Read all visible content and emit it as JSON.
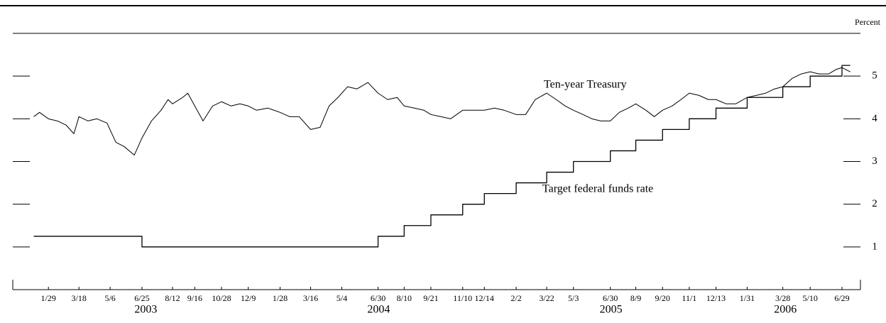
{
  "chart_data": {
    "type": "line",
    "y_axis_label": "Percent",
    "annotations": [
      "Ten-year Treasury",
      "Target federal funds rate"
    ],
    "xlim": [
      "2002-12-04",
      "2006-07-28"
    ],
    "ylim": [
      0,
      6
    ],
    "yticks": [
      1,
      2,
      3,
      4,
      5
    ],
    "xticks": [
      {
        "value": "2003-01-29",
        "label": "1/29"
      },
      {
        "value": "2003-03-18",
        "label": "3/18"
      },
      {
        "value": "2003-05-06",
        "label": "5/6"
      },
      {
        "value": "2003-06-25",
        "label": "6/25"
      },
      {
        "value": "2003-08-12",
        "label": "8/12"
      },
      {
        "value": "2003-09-16",
        "label": "9/16"
      },
      {
        "value": "2003-10-28",
        "label": "10/28"
      },
      {
        "value": "2003-12-09",
        "label": "12/9"
      },
      {
        "value": "2004-01-28",
        "label": "1/28"
      },
      {
        "value": "2004-03-16",
        "label": "3/16"
      },
      {
        "value": "2004-05-04",
        "label": "5/4"
      },
      {
        "value": "2004-06-30",
        "label": "6/30"
      },
      {
        "value": "2004-08-10",
        "label": "8/10"
      },
      {
        "value": "2004-09-21",
        "label": "9/21"
      },
      {
        "value": "2004-11-10",
        "label": "11/10"
      },
      {
        "value": "2004-12-14",
        "label": "12/14"
      },
      {
        "value": "2005-02-02",
        "label": "2/2"
      },
      {
        "value": "2005-03-22",
        "label": "3/22"
      },
      {
        "value": "2005-05-03",
        "label": "5/3"
      },
      {
        "value": "2005-06-30",
        "label": "6/30"
      },
      {
        "value": "2005-08-09",
        "label": "8/9"
      },
      {
        "value": "2005-09-20",
        "label": "9/20"
      },
      {
        "value": "2005-11-01",
        "label": "11/1"
      },
      {
        "value": "2005-12-13",
        "label": "12/13"
      },
      {
        "value": "2006-01-31",
        "label": "1/31"
      },
      {
        "value": "2006-03-28",
        "label": "3/28"
      },
      {
        "value": "2006-05-10",
        "label": "5/10"
      },
      {
        "value": "2006-06-29",
        "label": "6/29"
      }
    ],
    "year_labels": [
      {
        "value": "2003-07-01",
        "label": "2003"
      },
      {
        "value": "2004-07-01",
        "label": "2004"
      },
      {
        "value": "2005-07-01",
        "label": "2005"
      },
      {
        "value": "2006-04-01",
        "label": "2006"
      }
    ],
    "series": [
      {
        "name": "Ten-year Treasury",
        "color": "#000000",
        "step": false,
        "x": [
          "2003-01-06",
          "2003-01-15",
          "2003-01-29",
          "2003-02-12",
          "2003-02-26",
          "2003-03-10",
          "2003-03-18",
          "2003-04-01",
          "2003-04-15",
          "2003-05-01",
          "2003-05-15",
          "2003-05-28",
          "2003-06-13",
          "2003-06-25",
          "2003-07-10",
          "2003-07-25",
          "2003-08-05",
          "2003-08-12",
          "2003-08-28",
          "2003-09-05",
          "2003-09-16",
          "2003-09-29",
          "2003-10-14",
          "2003-10-28",
          "2003-11-12",
          "2003-11-26",
          "2003-12-09",
          "2003-12-22",
          "2004-01-09",
          "2004-01-28",
          "2004-02-12",
          "2004-02-27",
          "2004-03-16",
          "2004-03-31",
          "2004-04-14",
          "2004-04-28",
          "2004-05-13",
          "2004-05-28",
          "2004-06-14",
          "2004-06-30",
          "2004-07-15",
          "2004-07-30",
          "2004-08-10",
          "2004-08-26",
          "2004-09-10",
          "2004-09-21",
          "2004-10-07",
          "2004-10-22",
          "2004-11-10",
          "2004-11-26",
          "2004-12-14",
          "2004-12-30",
          "2005-01-14",
          "2005-02-02",
          "2005-02-17",
          "2005-03-04",
          "2005-03-22",
          "2005-04-06",
          "2005-04-20",
          "2005-05-03",
          "2005-05-18",
          "2005-06-01",
          "2005-06-15",
          "2005-06-30",
          "2005-07-14",
          "2005-07-28",
          "2005-08-09",
          "2005-08-25",
          "2005-09-07",
          "2005-09-20",
          "2005-10-05",
          "2005-10-19",
          "2005-11-01",
          "2005-11-16",
          "2005-12-01",
          "2005-12-13",
          "2005-12-29",
          "2006-01-13",
          "2006-01-31",
          "2006-02-15",
          "2006-03-01",
          "2006-03-15",
          "2006-03-28",
          "2006-04-12",
          "2006-04-26",
          "2006-05-10",
          "2006-05-24",
          "2006-06-08",
          "2006-06-19",
          "2006-06-29",
          "2006-07-12"
        ],
        "values": [
          4.05,
          4.15,
          4.0,
          3.95,
          3.85,
          3.65,
          4.05,
          3.95,
          4.0,
          3.9,
          3.45,
          3.35,
          3.15,
          3.55,
          3.95,
          4.2,
          4.45,
          4.35,
          4.5,
          4.6,
          4.3,
          3.95,
          4.3,
          4.4,
          4.3,
          4.35,
          4.3,
          4.2,
          4.25,
          4.15,
          4.05,
          4.05,
          3.75,
          3.8,
          4.3,
          4.5,
          4.75,
          4.7,
          4.85,
          4.6,
          4.45,
          4.5,
          4.3,
          4.25,
          4.2,
          4.1,
          4.05,
          4.0,
          4.2,
          4.2,
          4.2,
          4.25,
          4.2,
          4.1,
          4.1,
          4.45,
          4.6,
          4.45,
          4.3,
          4.2,
          4.1,
          4.0,
          3.95,
          3.95,
          4.15,
          4.25,
          4.35,
          4.2,
          4.05,
          4.2,
          4.3,
          4.45,
          4.6,
          4.55,
          4.45,
          4.45,
          4.35,
          4.35,
          4.5,
          4.55,
          4.6,
          4.7,
          4.75,
          4.95,
          5.05,
          5.1,
          5.05,
          5.05,
          5.15,
          5.2,
          5.1
        ]
      },
      {
        "name": "Target federal funds rate",
        "color": "#000000",
        "step": true,
        "x": [
          "2003-01-06",
          "2003-06-25",
          "2004-06-30",
          "2004-08-10",
          "2004-09-21",
          "2004-11-10",
          "2004-12-14",
          "2005-02-02",
          "2005-03-22",
          "2005-05-03",
          "2005-06-30",
          "2005-08-09",
          "2005-09-20",
          "2005-11-01",
          "2005-12-13",
          "2006-01-31",
          "2006-03-28",
          "2006-05-10",
          "2006-06-29",
          "2006-07-12"
        ],
        "values": [
          1.25,
          1,
          1.25,
          1.5,
          1.75,
          2,
          2.25,
          2.5,
          2.75,
          3,
          3.25,
          3.5,
          3.75,
          4,
          4.25,
          4.5,
          4.75,
          5,
          5.25,
          5.25
        ]
      }
    ]
  }
}
